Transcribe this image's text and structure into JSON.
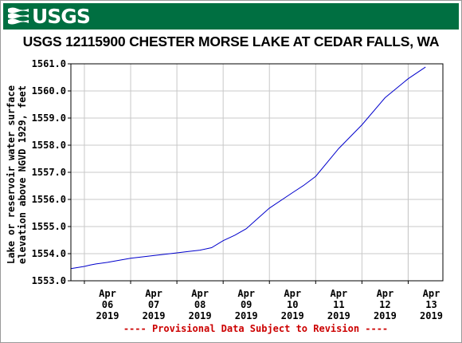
{
  "header": {
    "logo_text": "USGS",
    "brand_color": "#006f41"
  },
  "chart_data": {
    "type": "line",
    "title": "USGS 12115900 CHESTER MORSE LAKE AT CEDAR FALLS, WA",
    "ylabel_lines": [
      "Lake or reservoir water surface",
      "elevation above NGVD 1929, feet"
    ],
    "xlabel": "",
    "ylim": [
      1553.0,
      1561.0
    ],
    "yticks": [
      1553.0,
      1554.0,
      1555.0,
      1556.0,
      1557.0,
      1558.0,
      1559.0,
      1560.0,
      1561.0
    ],
    "ytick_labels": [
      "1553.0",
      "1554.0",
      "1555.0",
      "1556.0",
      "1557.0",
      "1558.0",
      "1559.0",
      "1560.0",
      "1561.0"
    ],
    "xlim": [
      "2019-04-05T17:00",
      "2019-04-13T18:00"
    ],
    "xticks": [
      {
        "month": "Apr",
        "day": "06",
        "year": "2019"
      },
      {
        "month": "Apr",
        "day": "07",
        "year": "2019"
      },
      {
        "month": "Apr",
        "day": "08",
        "year": "2019"
      },
      {
        "month": "Apr",
        "day": "09",
        "year": "2019"
      },
      {
        "month": "Apr",
        "day": "10",
        "year": "2019"
      },
      {
        "month": "Apr",
        "day": "11",
        "year": "2019"
      },
      {
        "month": "Apr",
        "day": "12",
        "year": "2019"
      },
      {
        "month": "Apr",
        "day": "13",
        "year": "2019"
      }
    ],
    "grid": true,
    "line_color": "#0000cc",
    "series": [
      {
        "x": [
          "2019-04-05T17:00",
          "2019-04-06T00:00",
          "2019-04-06T03:00",
          "2019-04-06T06:00",
          "2019-04-06T12:00",
          "2019-04-07T00:00",
          "2019-04-07T12:00",
          "2019-04-08T00:00",
          "2019-04-08T06:00",
          "2019-04-08T12:00",
          "2019-04-08T18:00",
          "2019-04-09T00:00",
          "2019-04-09T06:00",
          "2019-04-09T12:00",
          "2019-04-09T18:00",
          "2019-04-10T00:00",
          "2019-04-10T12:00",
          "2019-04-10T18:00",
          "2019-04-11T00:00",
          "2019-04-11T12:00",
          "2019-04-12T00:00",
          "2019-04-12T12:00",
          "2019-04-13T00:00",
          "2019-04-13T09:00"
        ],
        "y": [
          1553.45,
          1553.53,
          1553.58,
          1553.62,
          1553.68,
          1553.83,
          1553.93,
          1554.03,
          1554.08,
          1554.13,
          1554.22,
          1554.48,
          1554.68,
          1554.92,
          1555.3,
          1555.68,
          1556.25,
          1556.53,
          1556.85,
          1557.88,
          1558.75,
          1559.75,
          1560.45,
          1560.88
        ]
      }
    ],
    "footnote": "---- Provisional Data Subject to Revision ----"
  }
}
